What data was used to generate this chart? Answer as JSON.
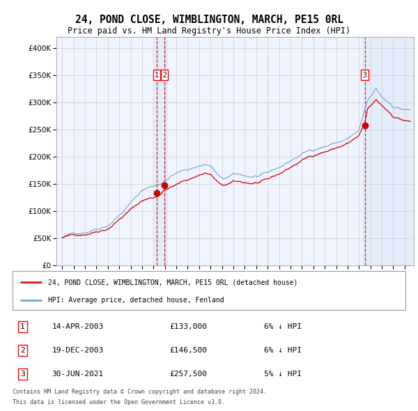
{
  "title": "24, POND CLOSE, WIMBLINGTON, MARCH, PE15 0RL",
  "subtitle": "Price paid vs. HM Land Registry's House Price Index (HPI)",
  "legend_property": "24, POND CLOSE, WIMBLINGTON, MARCH, PE15 0RL (detached house)",
  "legend_hpi": "HPI: Average price, detached house, Fenland",
  "footer1": "Contains HM Land Registry data © Crown copyright and database right 2024.",
  "footer2": "This data is licensed under the Open Government Licence v3.0.",
  "transactions": [
    {
      "num": 1,
      "date": "14-APR-2003",
      "price": 133000,
      "pct": "6%",
      "dir": "↓",
      "year": 2003.29
    },
    {
      "num": 2,
      "date": "19-DEC-2003",
      "price": 146500,
      "pct": "6%",
      "dir": "↓",
      "year": 2003.96
    },
    {
      "num": 3,
      "date": "30-JUN-2021",
      "price": 257500,
      "pct": "5%",
      "dir": "↓",
      "year": 2021.5
    }
  ],
  "property_color": "#cc0000",
  "hpi_color": "#6699cc",
  "dot_color": "#cc0000",
  "vline_color": "#cc0000",
  "highlight_color": "#ddeeff",
  "grid_color": "#cccccc",
  "plot_bg_color": "#f0f4ff",
  "ylim": [
    0,
    420000
  ],
  "yticks": [
    0,
    50000,
    100000,
    150000,
    200000,
    250000,
    300000,
    350000,
    400000
  ],
  "xlim_start": 1994.5,
  "xlim_end": 2025.8
}
